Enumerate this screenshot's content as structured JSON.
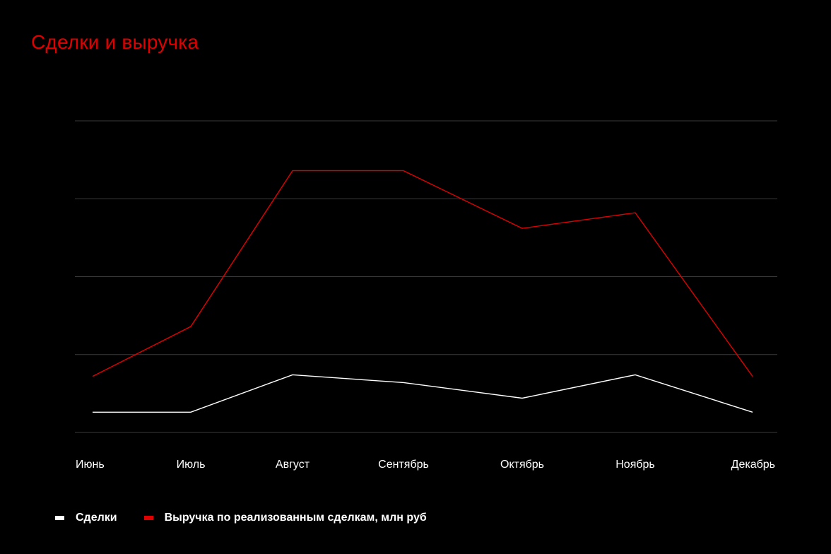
{
  "chart_data": {
    "type": "line",
    "title": "Сделки и выручка",
    "categories": [
      "Июнь",
      "Июль",
      "Август",
      "Сентябрь",
      "Октябрь",
      "Ноябрь",
      "Декабрь"
    ],
    "series": [
      {
        "name": "Сделки",
        "color": "#ffffff",
        "values": [
          13,
          13,
          37,
          32,
          22,
          37,
          13
        ]
      },
      {
        "name": "Выручка по реализованным сделкам, млн руб",
        "color": "#e00000",
        "values": [
          36,
          68,
          168,
          168,
          131,
          141,
          36
        ]
      }
    ],
    "ylim": [
      0,
      200
    ],
    "y_gridlines": [
      0,
      50,
      100,
      150,
      200
    ],
    "grid": true,
    "legend_position": "bottom-left",
    "xlabel": "",
    "ylabel": ""
  }
}
